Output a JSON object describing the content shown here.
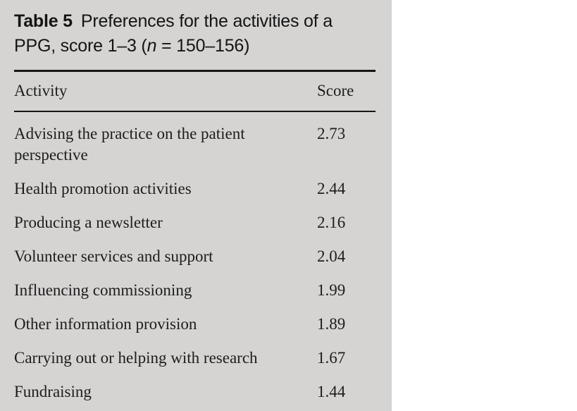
{
  "caption": {
    "label": "Table 5",
    "line1": "Preferences for the activities of a",
    "line2_pre": "PPG, score 1–3 (",
    "line2_n": "n",
    "line2_post": " = 150–156)"
  },
  "table": {
    "columns": [
      "Activity",
      "Score"
    ],
    "rows": [
      {
        "activity": "Advising the practice on the patient perspective",
        "score": "2.73"
      },
      {
        "activity": "Health promotion activities",
        "score": "2.44"
      },
      {
        "activity": "Producing a newsletter",
        "score": "2.16"
      },
      {
        "activity": "Volunteer services and support",
        "score": "2.04"
      },
      {
        "activity": "Influencing commissioning",
        "score": "1.99"
      },
      {
        "activity": "Other information provision",
        "score": "1.89"
      },
      {
        "activity": "Carrying out or helping with research",
        "score": "1.67"
      },
      {
        "activity": "Fundraising",
        "score": "1.44"
      }
    ]
  },
  "colors": {
    "panel_background": "#d5d4d2",
    "page_background": "#ffffff",
    "text": "#1d1d1d",
    "rule": "#161616"
  }
}
